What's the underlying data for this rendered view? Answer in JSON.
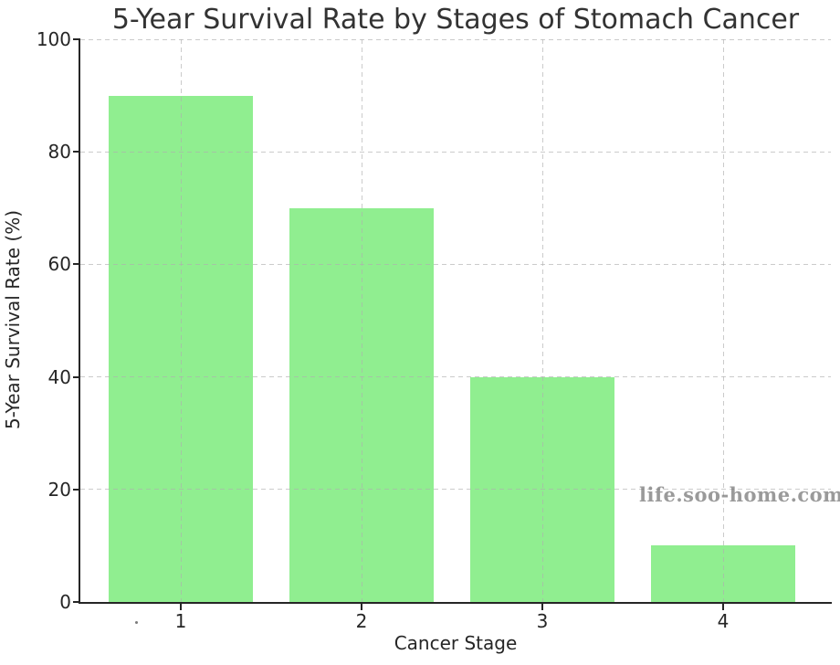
{
  "title": "5-Year Survival Rate by Stages of Stomach Cancer",
  "watermark": "life.soo-home.com",
  "chart_data": {
    "type": "bar",
    "categories": [
      "1",
      "2",
      "3",
      "4"
    ],
    "values": [
      90,
      70,
      40,
      10
    ],
    "title": "5-Year Survival Rate by Stages of Stomach Cancer",
    "xlabel": "Cancer Stage",
    "ylabel": "5-Year Survival Rate (%)",
    "ylim": [
      0,
      100
    ],
    "yticks": [
      0,
      20,
      40,
      60,
      80,
      100
    ],
    "bar_color": "#90EE90",
    "grid": true,
    "grid_style": "dashed",
    "legend": "none",
    "watermark": "life.soo-home.com"
  },
  "colors": {
    "bar": "#90EE90",
    "axis": "#262626",
    "grid": "#c9c9c9",
    "title_text": "#333333",
    "watermark_text": "#9e9e9e",
    "background": "#ffffff"
  }
}
